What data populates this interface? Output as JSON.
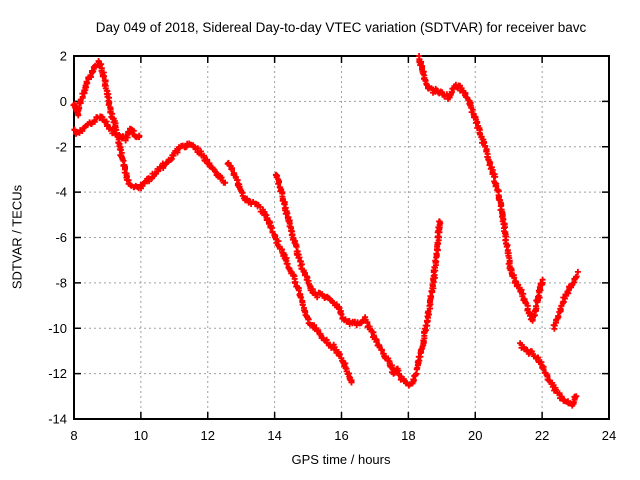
{
  "chart_data": {
    "type": "scatter",
    "title": "Day 049 of 2018, Sidereal Day-to-day VTEC variation (SDTVAR) for receiver bavc",
    "xlabel": "GPS time / hours",
    "ylabel": "SDTVAR / TECUs",
    "xlim": [
      8,
      24
    ],
    "ylim": [
      -14,
      2
    ],
    "xticks": [
      8,
      10,
      12,
      14,
      16,
      18,
      20,
      22,
      24
    ],
    "yticks": [
      2,
      0,
      -2,
      -4,
      -6,
      -8,
      -10,
      -12,
      -14
    ],
    "grid": true,
    "grid_style": "dashed",
    "legend_position": "none",
    "marker": "plus",
    "marker_color": "#ff0000",
    "axis_color": "#000000",
    "grid_color": "#a0a0a0",
    "background_color": "#ffffff",
    "series": [
      {
        "name": "arc-morning-upper",
        "points": [
          [
            8,
            -0.1
          ],
          [
            8.05,
            -0.3
          ],
          [
            8.1,
            -0.55
          ],
          [
            8.15,
            -0.25
          ],
          [
            8.2,
            0
          ],
          [
            8.3,
            0.4
          ],
          [
            8.4,
            0.85
          ],
          [
            8.5,
            1.15
          ],
          [
            8.6,
            1.45
          ],
          [
            8.7,
            1.65
          ],
          [
            8.75,
            1.72
          ],
          [
            8.8,
            1.55
          ],
          [
            8.85,
            1.3
          ],
          [
            8.92,
            0.95
          ],
          [
            9,
            0.3
          ],
          [
            9.08,
            -0.3
          ],
          [
            9.15,
            -0.65
          ],
          [
            9.22,
            -1.05
          ],
          [
            9.3,
            -1.6
          ],
          [
            9.38,
            -2.1
          ],
          [
            9.45,
            -2.6
          ],
          [
            9.52,
            -3
          ],
          [
            9.6,
            -3.45
          ],
          [
            9.7,
            -3.7
          ],
          [
            9.8,
            -3.75
          ],
          [
            9.9,
            -3.8
          ],
          [
            10,
            -3.78
          ],
          [
            10.1,
            -3.65
          ],
          [
            10.25,
            -3.4
          ],
          [
            10.4,
            -3.2
          ],
          [
            10.55,
            -3
          ],
          [
            10.7,
            -2.8
          ],
          [
            10.85,
            -2.55
          ],
          [
            11,
            -2.3
          ],
          [
            11.15,
            -2.1
          ],
          [
            11.3,
            -1.97
          ],
          [
            11.45,
            -1.9
          ],
          [
            11.6,
            -2.05
          ],
          [
            11.75,
            -2.25
          ],
          [
            11.9,
            -2.45
          ],
          [
            12,
            -2.7
          ],
          [
            12.1,
            -2.9
          ],
          [
            12.2,
            -3.05
          ],
          [
            12.3,
            -3.2
          ],
          [
            12.4,
            -3.4
          ],
          [
            12.5,
            -3.55
          ]
        ]
      },
      {
        "name": "arc-morning-lower",
        "points": [
          [
            8,
            -1.25
          ],
          [
            8.08,
            -1.38
          ],
          [
            8.16,
            -1.3
          ],
          [
            8.25,
            -1.2
          ],
          [
            8.35,
            -1.08
          ],
          [
            8.45,
            -1
          ],
          [
            8.55,
            -0.9
          ],
          [
            8.65,
            -0.8
          ],
          [
            8.75,
            -0.7
          ],
          [
            8.82,
            -0.72
          ],
          [
            8.9,
            -0.85
          ],
          [
            9,
            -1.05
          ],
          [
            9.1,
            -1.25
          ],
          [
            9.2,
            -1.38
          ],
          [
            9.32,
            -1.48
          ],
          [
            9.42,
            -1.55
          ],
          [
            9.5,
            -1.62
          ],
          [
            9.56,
            -1.68
          ],
          [
            9.6,
            -1.5
          ],
          [
            9.65,
            -1.32
          ],
          [
            9.7,
            -1.25
          ],
          [
            9.76,
            -1.32
          ],
          [
            9.82,
            -1.45
          ],
          [
            9.88,
            -1.58
          ],
          [
            9.93,
            -1.62
          ],
          [
            9.97,
            -1.5
          ]
        ]
      },
      {
        "name": "arc-midday",
        "points": [
          [
            12.6,
            -2.7
          ],
          [
            12.7,
            -2.95
          ],
          [
            12.8,
            -3.2
          ],
          [
            12.9,
            -3.55
          ],
          [
            13,
            -3.95
          ],
          [
            13.08,
            -4.2
          ],
          [
            13.17,
            -4.35
          ],
          [
            13.28,
            -4.42
          ],
          [
            13.4,
            -4.5
          ],
          [
            13.52,
            -4.62
          ],
          [
            13.62,
            -4.8
          ],
          [
            13.72,
            -5.05
          ],
          [
            13.82,
            -5.35
          ],
          [
            13.92,
            -5.65
          ],
          [
            14.02,
            -5.95
          ],
          [
            14.12,
            -6.3
          ],
          [
            14.22,
            -6.6
          ],
          [
            14.32,
            -6.9
          ],
          [
            14.45,
            -7.35
          ],
          [
            14.58,
            -7.8
          ],
          [
            14.7,
            -8.3
          ],
          [
            14.82,
            -8.85
          ],
          [
            14.92,
            -9.3
          ],
          [
            15,
            -9.65
          ],
          [
            15.1,
            -9.8
          ],
          [
            15.2,
            -9.95
          ],
          [
            15.32,
            -10.15
          ],
          [
            15.45,
            -10.4
          ],
          [
            15.58,
            -10.65
          ],
          [
            15.68,
            -10.85
          ],
          [
            15.78,
            -10.8
          ],
          [
            15.88,
            -11.05
          ],
          [
            16,
            -11.35
          ],
          [
            16.1,
            -11.65
          ],
          [
            16.18,
            -11.95
          ],
          [
            16.25,
            -12.25
          ],
          [
            16.3,
            -12.45
          ]
        ]
      },
      {
        "name": "arc-afternoon-with-spike",
        "points": [
          [
            14.05,
            -3.25
          ],
          [
            14.12,
            -3.6
          ],
          [
            14.2,
            -4
          ],
          [
            14.3,
            -4.6
          ],
          [
            14.4,
            -5.15
          ],
          [
            14.5,
            -5.7
          ],
          [
            14.6,
            -6.25
          ],
          [
            14.7,
            -6.75
          ],
          [
            14.8,
            -7.2
          ],
          [
            14.9,
            -7.6
          ],
          [
            15,
            -7.9
          ],
          [
            15.1,
            -8.25
          ],
          [
            15.2,
            -8.48
          ],
          [
            15.3,
            -8.55
          ],
          [
            15.4,
            -8.45
          ],
          [
            15.5,
            -8.6
          ],
          [
            15.6,
            -8.7
          ],
          [
            15.7,
            -8.8
          ],
          [
            15.8,
            -8.95
          ],
          [
            15.9,
            -9.1
          ],
          [
            16,
            -9.4
          ],
          [
            16.08,
            -9.6
          ],
          [
            16.2,
            -9.7
          ],
          [
            16.35,
            -9.78
          ],
          [
            16.5,
            -9.82
          ],
          [
            16.6,
            -9.72
          ],
          [
            16.68,
            -9.58
          ],
          [
            16.78,
            -9.8
          ],
          [
            16.88,
            -10.1
          ],
          [
            17,
            -10.45
          ],
          [
            17.12,
            -10.8
          ],
          [
            17.25,
            -11.1
          ],
          [
            17.38,
            -11.35
          ],
          [
            17.48,
            -11.6
          ],
          [
            17.56,
            -11.95
          ],
          [
            17.65,
            -11.8
          ],
          [
            17.75,
            -12.1
          ],
          [
            17.85,
            -12.3
          ],
          [
            17.95,
            -12.38
          ],
          [
            18.02,
            -12.48
          ],
          [
            18.08,
            -12.5
          ],
          [
            18.15,
            -12.3
          ],
          [
            18.22,
            -11.95
          ],
          [
            18.3,
            -11.55
          ],
          [
            18.38,
            -11.05
          ],
          [
            18.46,
            -10.45
          ],
          [
            18.54,
            -9.85
          ],
          [
            18.62,
            -9.2
          ],
          [
            18.7,
            -8.45
          ],
          [
            18.78,
            -7.6
          ],
          [
            18.85,
            -6.7
          ],
          [
            18.9,
            -5.9
          ],
          [
            18.93,
            -5.25
          ]
        ]
      },
      {
        "name": "arc-evening-upper",
        "points": [
          [
            18.3,
            2.05
          ],
          [
            18.34,
            1.85
          ],
          [
            18.38,
            1.6
          ],
          [
            18.43,
            1.3
          ],
          [
            18.48,
            1.05
          ],
          [
            18.54,
            0.82
          ],
          [
            18.6,
            0.62
          ],
          [
            18.68,
            0.5
          ],
          [
            18.76,
            0.42
          ],
          [
            18.84,
            0.48
          ],
          [
            18.9,
            0.32
          ],
          [
            18.97,
            0.42
          ],
          [
            19.04,
            0.35
          ],
          [
            19.12,
            0.25
          ],
          [
            19.2,
            0.12
          ],
          [
            19.28,
            0.35
          ],
          [
            19.36,
            0.58
          ],
          [
            19.44,
            0.7
          ],
          [
            19.52,
            0.62
          ],
          [
            19.62,
            0.5
          ],
          [
            19.72,
            0.32
          ],
          [
            19.82,
            0.02
          ],
          [
            19.92,
            -0.45
          ],
          [
            20.02,
            -0.85
          ],
          [
            20.12,
            -1.25
          ],
          [
            20.22,
            -1.7
          ],
          [
            20.32,
            -2.15
          ],
          [
            20.42,
            -2.6
          ],
          [
            20.52,
            -3.1
          ],
          [
            20.62,
            -3.65
          ],
          [
            20.72,
            -4.3
          ],
          [
            20.82,
            -5.1
          ],
          [
            20.92,
            -6.1
          ],
          [
            21.02,
            -7.1
          ],
          [
            21.12,
            -7.7
          ],
          [
            21.2,
            -7.98
          ],
          [
            21.3,
            -8.15
          ],
          [
            21.4,
            -8.45
          ],
          [
            21.5,
            -8.8
          ],
          [
            21.58,
            -9.2
          ],
          [
            21.66,
            -9.55
          ],
          [
            21.72,
            -9.6
          ],
          [
            21.8,
            -9.1
          ],
          [
            21.9,
            -8.55
          ],
          [
            21.97,
            -8.1
          ],
          [
            22.02,
            -7.95
          ]
        ]
      },
      {
        "name": "arc-late-lower",
        "points": [
          [
            21.35,
            -10.7
          ],
          [
            21.45,
            -10.85
          ],
          [
            21.55,
            -11
          ],
          [
            21.62,
            -11.1
          ],
          [
            21.7,
            -11.05
          ],
          [
            21.78,
            -11.25
          ],
          [
            21.88,
            -11.4
          ],
          [
            21.98,
            -11.6
          ],
          [
            22.08,
            -11.9
          ],
          [
            22.18,
            -12.2
          ],
          [
            22.28,
            -12.45
          ],
          [
            22.38,
            -12.7
          ],
          [
            22.48,
            -12.85
          ],
          [
            22.58,
            -13.05
          ],
          [
            22.68,
            -13.2
          ],
          [
            22.78,
            -13.3
          ],
          [
            22.88,
            -13.38
          ],
          [
            22.95,
            -13.25
          ],
          [
            23,
            -13
          ]
        ]
      },
      {
        "name": "arc-late-rising",
        "points": [
          [
            22.35,
            -9.95
          ],
          [
            22.42,
            -9.7
          ],
          [
            22.5,
            -9.4
          ],
          [
            22.58,
            -9.05
          ],
          [
            22.66,
            -8.7
          ],
          [
            22.74,
            -8.45
          ],
          [
            22.82,
            -8.25
          ],
          [
            22.88,
            -8.1
          ],
          [
            22.94,
            -8
          ],
          [
            23,
            -7.8
          ],
          [
            23.05,
            -7.6
          ]
        ]
      }
    ]
  }
}
